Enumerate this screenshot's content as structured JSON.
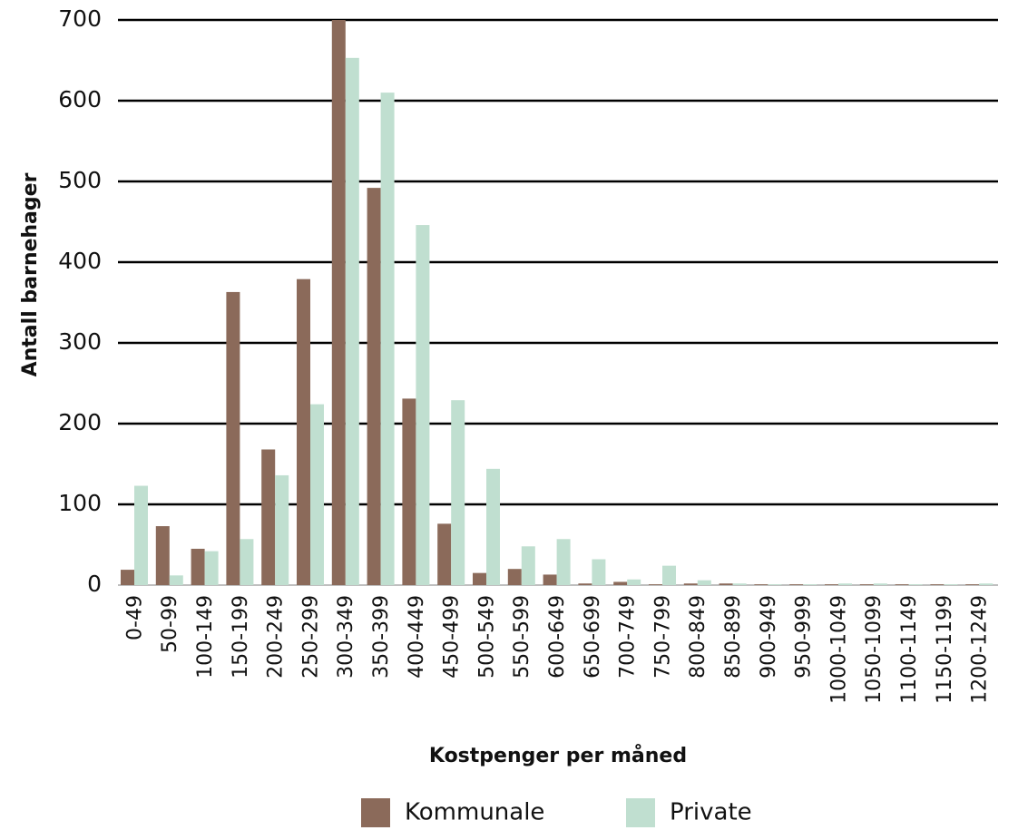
{
  "chart_data": {
    "type": "bar",
    "x_label": "Kostpenger per måned",
    "y_label": "Antall barnehager",
    "categories": [
      "0-49",
      "50-99",
      "100-149",
      "150-199",
      "200-249",
      "250-299",
      "300-349",
      "350-399",
      "400-449",
      "450-499",
      "500-549",
      "550-599",
      "600-649",
      "650-699",
      "700-749",
      "750-799",
      "800-849",
      "850-899",
      "900-949",
      "950-999",
      "1000-1049",
      "1050-1099",
      "1100-1149",
      "1150-1199",
      "1200-1249"
    ],
    "series": [
      {
        "name": "Kommunale",
        "color": "#8b6a5a",
        "values": [
          19,
          73,
          45,
          363,
          168,
          379,
          700,
          492,
          231,
          76,
          15,
          20,
          13,
          2,
          4,
          1,
          2,
          2,
          1,
          1,
          1,
          1,
          1,
          1,
          1
        ]
      },
      {
        "name": "Private",
        "color": "#c0dfd0",
        "values": [
          123,
          12,
          42,
          57,
          136,
          224,
          653,
          610,
          446,
          229,
          144,
          48,
          57,
          32,
          7,
          24,
          6,
          2,
          1,
          1,
          2,
          2,
          1,
          1,
          2
        ]
      }
    ],
    "ylim": [
      0,
      700
    ],
    "yticks": [
      0,
      100,
      200,
      300,
      400,
      500,
      600,
      700
    ],
    "grid": true,
    "legend": "bottom"
  }
}
